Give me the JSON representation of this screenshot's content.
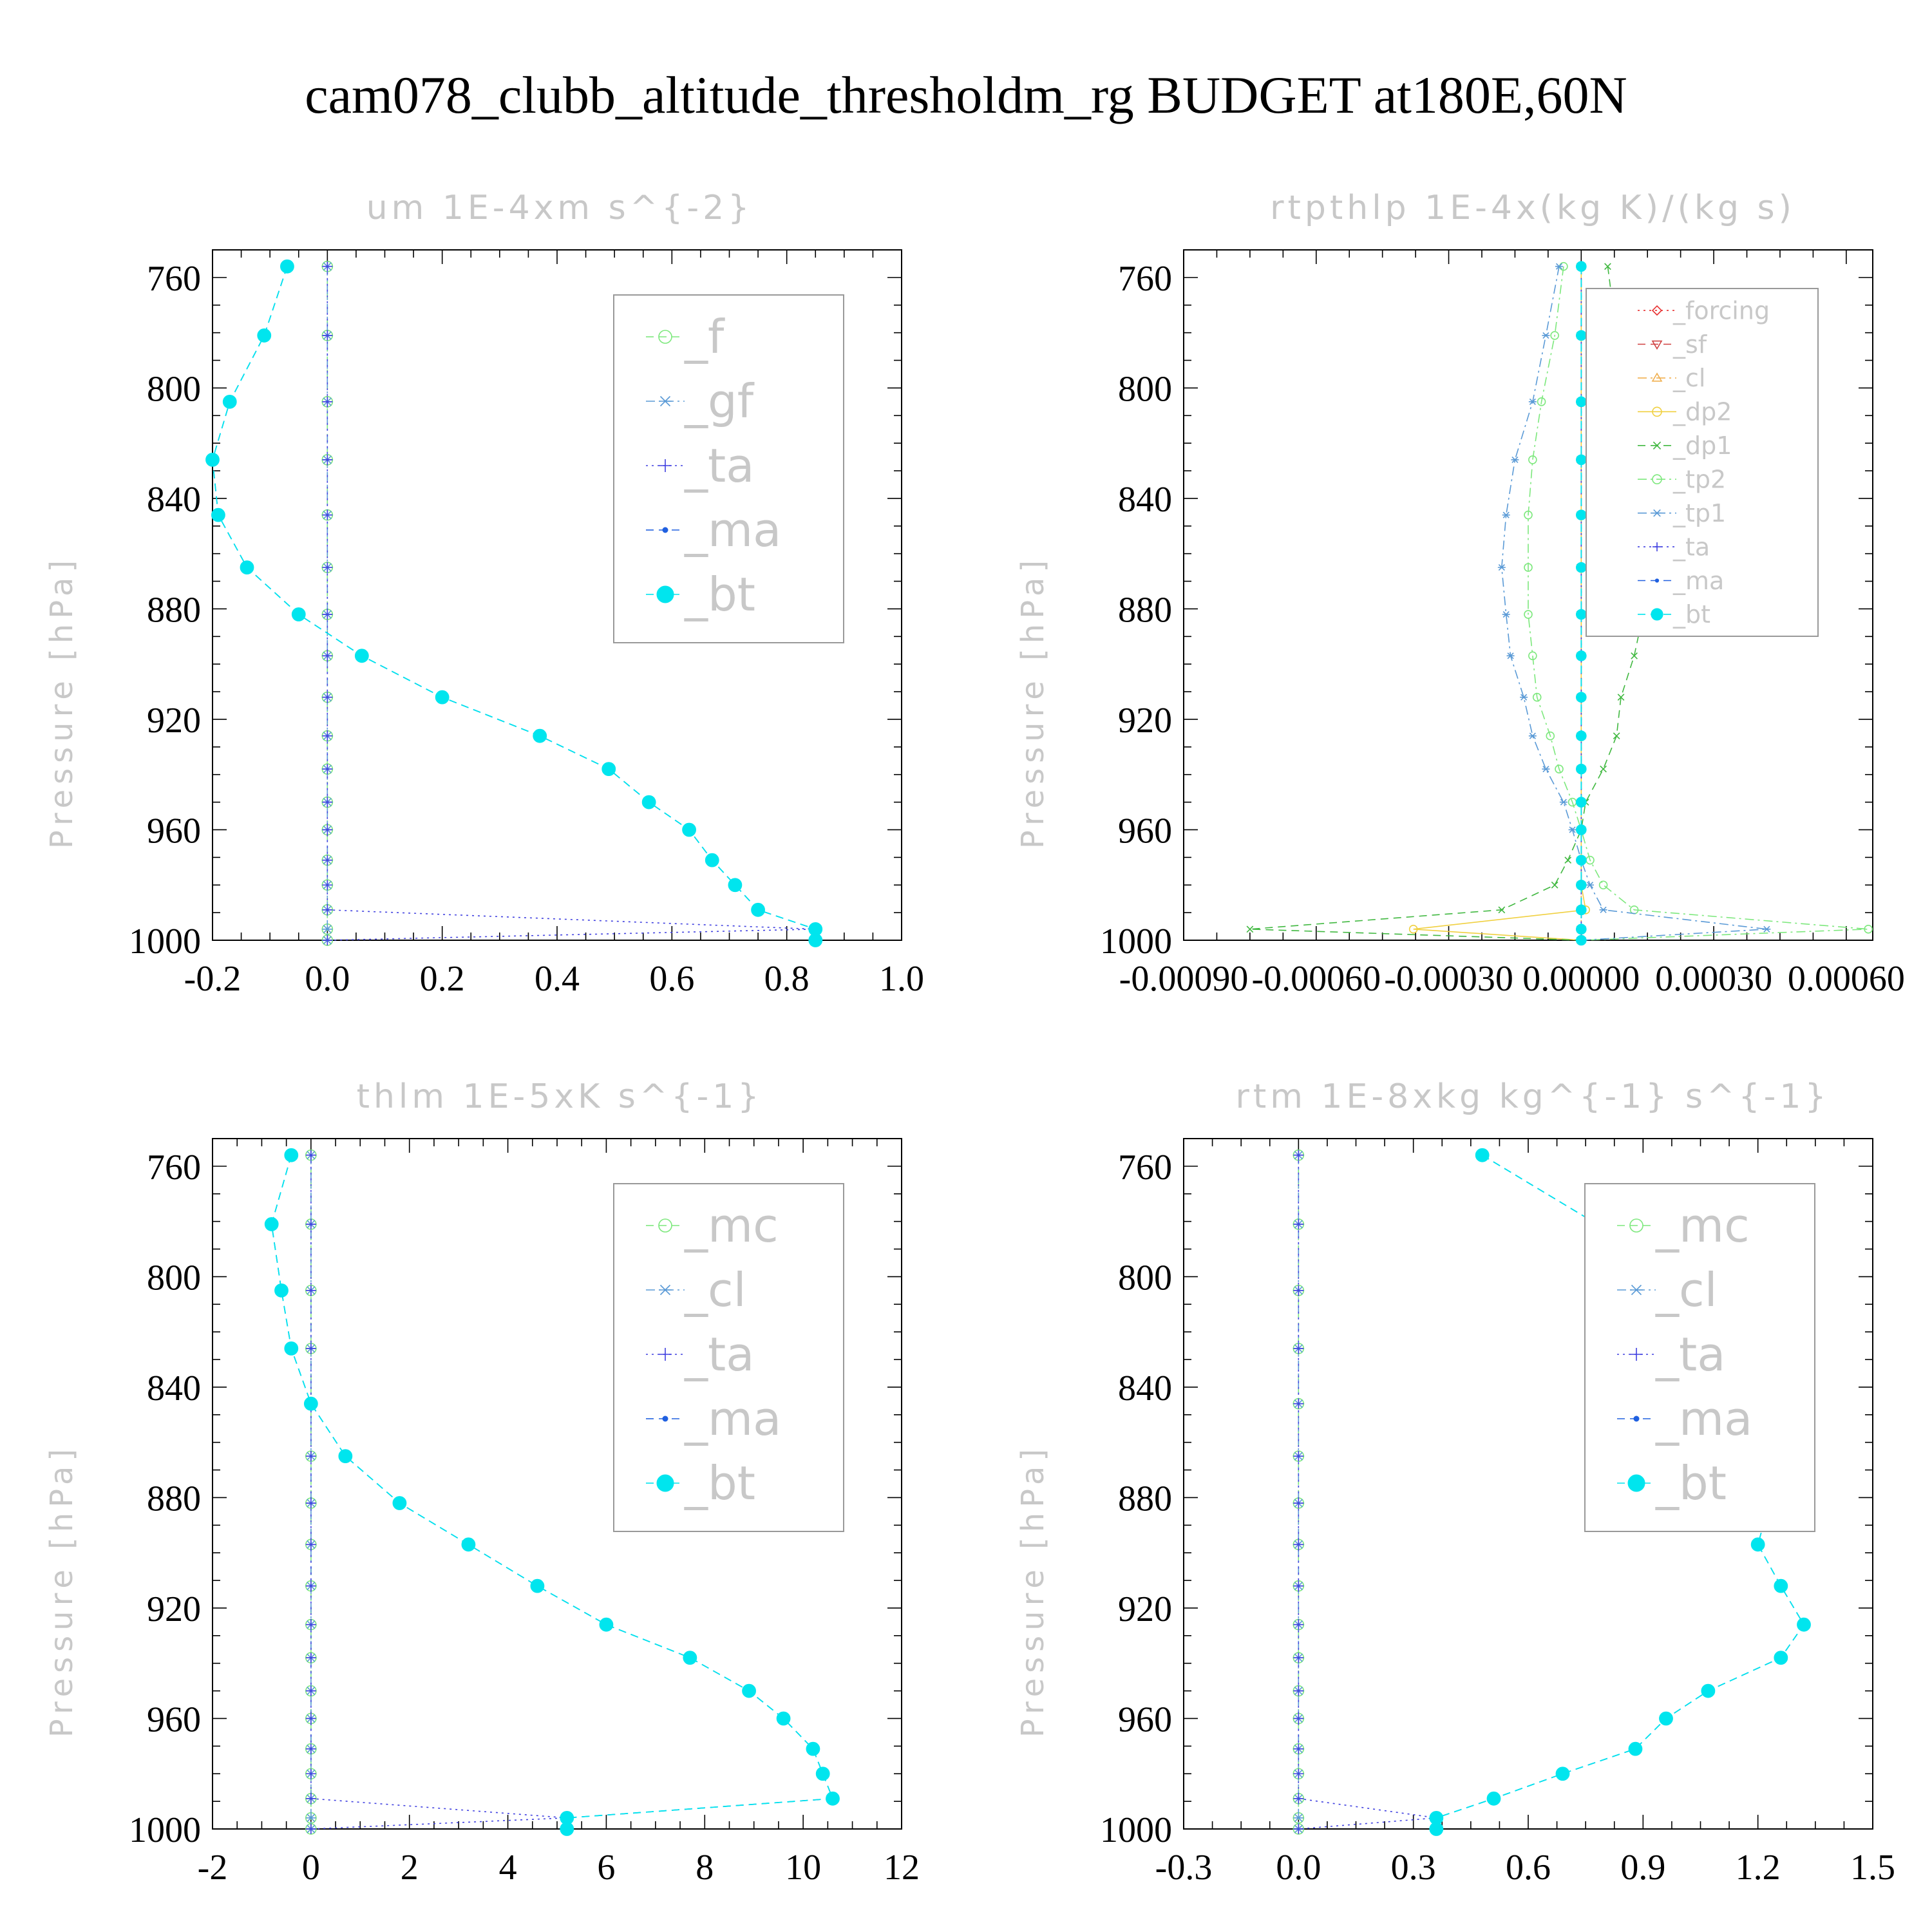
{
  "figure_title": "cam078_clubb_altitude_thresholdm_rg  BUDGET at180E,60N",
  "chart_data": [
    {
      "type": "line",
      "title": "um  1E-4xm s^{-2}",
      "ylabel": "Pressure [hPa]",
      "xlabel": "",
      "ylim": [
        750,
        1000
      ],
      "y_inverted": true,
      "xlim": [
        -0.2,
        1.0
      ],
      "xticks": [
        "-0.2",
        "0.0",
        "0.2",
        "0.4",
        "0.6",
        "0.8",
        "1.0"
      ],
      "xtick_values": [
        -0.2,
        0.0,
        0.2,
        0.4,
        0.6,
        0.8,
        1.0
      ],
      "yticks": [
        "760",
        "800",
        "840",
        "880",
        "920",
        "960",
        "1000"
      ],
      "ytick_values": [
        760,
        800,
        840,
        880,
        920,
        960,
        1000
      ],
      "legend_position": "top-right",
      "legend_size": "large",
      "levels": [
        756,
        781,
        805,
        826,
        846,
        865,
        882,
        897,
        912,
        926,
        938,
        950,
        960,
        971,
        980,
        989,
        996,
        1000
      ],
      "series": [
        {
          "name": "_f",
          "color": "#7de87d",
          "marker": "circle",
          "dash": "dash",
          "values": [
            0,
            0,
            0,
            0,
            0,
            0,
            0,
            0,
            0,
            0,
            0,
            0,
            0,
            0,
            0,
            0,
            0,
            0
          ]
        },
        {
          "name": "_gf",
          "color": "#5a9ad6",
          "marker": "star",
          "dash": "dashdot",
          "values": [
            0,
            0,
            0,
            0,
            0,
            0,
            0,
            0,
            0,
            0,
            0,
            0,
            0,
            0,
            0,
            0,
            0,
            0
          ]
        },
        {
          "name": "_ta",
          "color": "#4040e0",
          "marker": "plus",
          "dash": "dot",
          "values": [
            0,
            0,
            0,
            0,
            0,
            0,
            0,
            0,
            0,
            0,
            0,
            0,
            0,
            0,
            0,
            0,
            0.85,
            0
          ]
        },
        {
          "name": "_ma",
          "color": "#2060e0",
          "marker": "dot",
          "dash": "dash",
          "values": [
            -0.07,
            -0.11,
            -0.17,
            -0.2,
            -0.19,
            -0.14,
            -0.05,
            0.06,
            0.2,
            0.37,
            0.49,
            0.56,
            0.63,
            0.67,
            0.71,
            0.75,
            0.85,
            0.85
          ]
        },
        {
          "name": "_bt",
          "color": "#00e5ee",
          "marker": "filled",
          "dash": "dash",
          "values": [
            -0.07,
            -0.11,
            -0.17,
            -0.2,
            -0.19,
            -0.14,
            -0.05,
            0.06,
            0.2,
            0.37,
            0.49,
            0.56,
            0.63,
            0.67,
            0.71,
            0.75,
            0.85,
            0.85
          ]
        }
      ]
    },
    {
      "type": "line",
      "title": "rtpthlp  1E-4x(kg K)/(kg s)",
      "ylabel": "Pressure [hPa]",
      "xlabel": "",
      "ylim": [
        750,
        1000
      ],
      "y_inverted": true,
      "xlim": [
        -0.0009,
        0.00066
      ],
      "xticks": [
        "-0.00090",
        "-0.00060",
        "-0.00030",
        "0.00000",
        "0.00030",
        "0.00060"
      ],
      "xtick_values": [
        -0.0009,
        -0.0006,
        -0.0003,
        0.0,
        0.0003,
        0.0006
      ],
      "yticks": [
        "760",
        "800",
        "840",
        "880",
        "920",
        "960",
        "1000"
      ],
      "ytick_values": [
        760,
        800,
        840,
        880,
        920,
        960,
        1000
      ],
      "legend_position": "top-right",
      "legend_size": "small",
      "levels": [
        756,
        781,
        805,
        826,
        846,
        865,
        882,
        897,
        912,
        926,
        938,
        950,
        960,
        971,
        980,
        989,
        996,
        1000
      ],
      "series": [
        {
          "name": "_forcing",
          "color": "#e83030",
          "marker": "diamond",
          "dash": "dot",
          "values": [
            0,
            0,
            0,
            0,
            0,
            0,
            0,
            0,
            0,
            0,
            0,
            0,
            0,
            0,
            0,
            0,
            0,
            0
          ]
        },
        {
          "name": "_sf",
          "color": "#d04040",
          "marker": "tridown",
          "dash": "dash",
          "values": [
            0,
            0,
            0,
            0,
            0,
            0,
            0,
            0,
            0,
            0,
            0,
            0,
            0,
            0,
            0,
            0,
            0,
            0
          ]
        },
        {
          "name": "_cl",
          "color": "#f0b050",
          "marker": "triup",
          "dash": "dashdot",
          "values": [
            0,
            0,
            0,
            0,
            0,
            0,
            0,
            0,
            0,
            0,
            0,
            0,
            0,
            0,
            0,
            0,
            0,
            0
          ]
        },
        {
          "name": "_dp2",
          "color": "#f0d040",
          "marker": "circle",
          "dash": "solid",
          "values": [
            0,
            0,
            0,
            0,
            0,
            0,
            0,
            0,
            0,
            0,
            0,
            0,
            0,
            0,
            0,
            1e-05,
            -0.00038,
            0
          ]
        },
        {
          "name": "_dp1",
          "color": "#40b840",
          "marker": "cross",
          "dash": "dash",
          "values": [
            6e-05,
            8e-05,
            0.00012,
            0.00013,
            0.00015,
            0.00015,
            0.00014,
            0.00012,
            9e-05,
            8e-05,
            5e-05,
            1e-05,
            0,
            -3e-05,
            -6e-05,
            -0.00018,
            -0.00075,
            0
          ]
        },
        {
          "name": "_tp2",
          "color": "#7de87d",
          "marker": "circle",
          "dash": "dashdot",
          "values": [
            -4e-05,
            -6e-05,
            -9e-05,
            -0.00011,
            -0.00012,
            -0.00012,
            -0.00012,
            -0.00011,
            -0.0001,
            -7e-05,
            -5e-05,
            -2e-05,
            0,
            2e-05,
            5e-05,
            0.00012,
            0.00065,
            0
          ]
        },
        {
          "name": "_tp1",
          "color": "#5a9ad6",
          "marker": "star",
          "dash": "dashdot",
          "values": [
            -5e-05,
            -8e-05,
            -0.00011,
            -0.00015,
            -0.00017,
            -0.00018,
            -0.00017,
            -0.00016,
            -0.00013,
            -0.00011,
            -8e-05,
            -4e-05,
            -2e-05,
            0,
            2e-05,
            5e-05,
            0.00042,
            0
          ]
        },
        {
          "name": "_ta",
          "color": "#4040e0",
          "marker": "plus",
          "dash": "dot",
          "values": [
            0,
            0,
            0,
            0,
            0,
            0,
            0,
            0,
            0,
            0,
            0,
            0,
            0,
            0,
            0,
            0,
            0,
            0
          ]
        },
        {
          "name": "_ma",
          "color": "#2060e0",
          "marker": "dot",
          "dash": "dash",
          "values": [
            0,
            0,
            0,
            0,
            0,
            0,
            0,
            0,
            0,
            0,
            0,
            0,
            0,
            0,
            0,
            0,
            0,
            0
          ]
        },
        {
          "name": "_bt",
          "color": "#00e5ee",
          "marker": "filled",
          "dash": "dash",
          "values": [
            0,
            0,
            0,
            0,
            0,
            0,
            0,
            0,
            0,
            0,
            0,
            0,
            0,
            0,
            0,
            0,
            0,
            0
          ]
        }
      ]
    },
    {
      "type": "line",
      "title": "thlm  1E-5xK s^{-1}",
      "ylabel": "Pressure [hPa]",
      "xlabel": "",
      "ylim": [
        750,
        1000
      ],
      "y_inverted": true,
      "xlim": [
        -2,
        12
      ],
      "xticks": [
        "-2",
        "0",
        "2",
        "4",
        "6",
        "8",
        "10",
        "12"
      ],
      "xtick_values": [
        -2,
        0,
        2,
        4,
        6,
        8,
        10,
        12
      ],
      "yticks": [
        "760",
        "800",
        "840",
        "880",
        "920",
        "960",
        "1000"
      ],
      "ytick_values": [
        760,
        800,
        840,
        880,
        920,
        960,
        1000
      ],
      "legend_position": "top-right",
      "legend_size": "large",
      "levels": [
        756,
        781,
        805,
        826,
        846,
        865,
        882,
        897,
        912,
        926,
        938,
        950,
        960,
        971,
        980,
        989,
        996,
        1000
      ],
      "series": [
        {
          "name": "_mc",
          "color": "#7de87d",
          "marker": "circle",
          "dash": "dash",
          "values": [
            0,
            0,
            0,
            0,
            0,
            0,
            0,
            0,
            0,
            0,
            0,
            0,
            0,
            0,
            0,
            0,
            0,
            0
          ]
        },
        {
          "name": "_cl",
          "color": "#5a9ad6",
          "marker": "star",
          "dash": "dashdot",
          "values": [
            0,
            0,
            0,
            0,
            0,
            0,
            0,
            0,
            0,
            0,
            0,
            0,
            0,
            0,
            0,
            0,
            0,
            0
          ]
        },
        {
          "name": "_ta",
          "color": "#4040e0",
          "marker": "plus",
          "dash": "dot",
          "values": [
            0,
            0,
            0,
            0,
            0,
            0,
            0,
            0,
            0,
            0,
            0,
            0,
            0,
            0,
            0,
            0,
            5.2,
            0
          ]
        },
        {
          "name": "_ma",
          "color": "#2060e0",
          "marker": "dot",
          "dash": "dash",
          "values": [
            -0.4,
            -0.8,
            -0.6,
            -0.4,
            0,
            0.7,
            1.8,
            3.2,
            4.6,
            6.0,
            7.7,
            8.9,
            9.6,
            10.2,
            10.4,
            10.6,
            5.2,
            5.2
          ]
        },
        {
          "name": "_bt",
          "color": "#00e5ee",
          "marker": "filled",
          "dash": "dash",
          "values": [
            -0.4,
            -0.8,
            -0.6,
            -0.4,
            0,
            0.7,
            1.8,
            3.2,
            4.6,
            6.0,
            7.7,
            8.9,
            9.6,
            10.2,
            10.4,
            10.6,
            5.2,
            5.2
          ]
        }
      ]
    },
    {
      "type": "line",
      "title": "rtm  1E-8xkg kg^{-1} s^{-1}",
      "ylabel": "Pressure [hPa]",
      "xlabel": "",
      "ylim": [
        750,
        1000
      ],
      "y_inverted": true,
      "xlim": [
        -0.3,
        1.5
      ],
      "xticks": [
        "-0.3",
        "0.0",
        "0.3",
        "0.6",
        "0.9",
        "1.2",
        "1.5"
      ],
      "xtick_values": [
        -0.3,
        0.0,
        0.3,
        0.6,
        0.9,
        1.2,
        1.5
      ],
      "yticks": [
        "760",
        "800",
        "840",
        "880",
        "920",
        "960",
        "1000"
      ],
      "ytick_values": [
        760,
        800,
        840,
        880,
        920,
        960,
        1000
      ],
      "legend_position": "top-right",
      "legend_size": "large",
      "levels": [
        756,
        781,
        805,
        826,
        846,
        865,
        882,
        897,
        912,
        926,
        938,
        950,
        960,
        971,
        980,
        989,
        996,
        1000
      ],
      "series": [
        {
          "name": "_mc",
          "color": "#7de87d",
          "marker": "circle",
          "dash": "dash",
          "values": [
            0,
            0,
            0,
            0,
            0,
            0,
            0,
            0,
            0,
            0,
            0,
            0,
            0,
            0,
            0,
            0,
            0,
            0
          ]
        },
        {
          "name": "_cl",
          "color": "#5a9ad6",
          "marker": "star",
          "dash": "dashdot",
          "values": [
            0,
            0,
            0,
            0,
            0,
            0,
            0,
            0,
            0,
            0,
            0,
            0,
            0,
            0,
            0,
            0,
            0,
            0
          ]
        },
        {
          "name": "_ta",
          "color": "#4040e0",
          "marker": "plus",
          "dash": "dot",
          "values": [
            0,
            0,
            0,
            0,
            0,
            0,
            0,
            0,
            0,
            0,
            0,
            0,
            0,
            0,
            0,
            0,
            0.36,
            0
          ]
        },
        {
          "name": "_ma",
          "color": "#2060e0",
          "marker": "dot",
          "dash": "dash",
          "values": [
            0.48,
            0.78,
            0.96,
            0.99,
            1.1,
            1.2,
            1.23,
            1.2,
            1.26,
            1.32,
            1.26,
            1.07,
            0.96,
            0.88,
            0.69,
            0.51,
            0.36,
            0.36
          ]
        },
        {
          "name": "_bt",
          "color": "#00e5ee",
          "marker": "filled",
          "dash": "dash",
          "values": [
            0.48,
            0.78,
            0.96,
            0.99,
            1.1,
            1.2,
            1.23,
            1.2,
            1.26,
            1.32,
            1.26,
            1.07,
            0.96,
            0.88,
            0.69,
            0.51,
            0.36,
            0.36
          ]
        }
      ]
    }
  ]
}
